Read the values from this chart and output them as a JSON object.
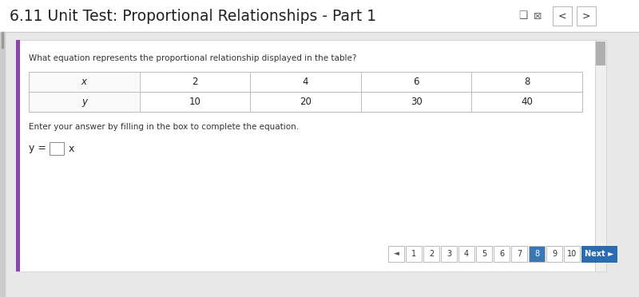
{
  "title": "6.11 Unit Test: Proportional Relationships - Part 1",
  "title_color": "#222222",
  "title_fontsize": 13.5,
  "bg_color": "#e8e8e8",
  "card_bg": "#ffffff",
  "question_text": "What equation represents the proportional relationship displayed in the table?",
  "table_x_label": "x",
  "table_y_label": "y",
  "table_x_values": [
    "2",
    "4",
    "6",
    "8"
  ],
  "table_y_values": [
    "10",
    "20",
    "30",
    "40"
  ],
  "instruction_text": "Enter your answer by filling in the box to complete the equation.",
  "equation_left": "y = ",
  "equation_right": "x",
  "nav_numbers": [
    "1",
    "2",
    "3",
    "4",
    "5",
    "6",
    "7",
    "8",
    "9",
    "10"
  ],
  "nav_active": 7,
  "nav_active_bg": "#3a78b5",
  "nav_bg": "#ffffff",
  "nav_border": "#bbbbbb",
  "next_btn_color": "#2b6cb0",
  "next_btn_text": "Next ►",
  "left_accent_color": "#8e44ad",
  "top_bar_bg": "#ffffff",
  "top_bar_border": "#cccccc",
  "table_border_color": "#bbbbbb",
  "scrollbar_bg": "#d0d0d0",
  "scrollbar_thumb": "#b0b0b0"
}
